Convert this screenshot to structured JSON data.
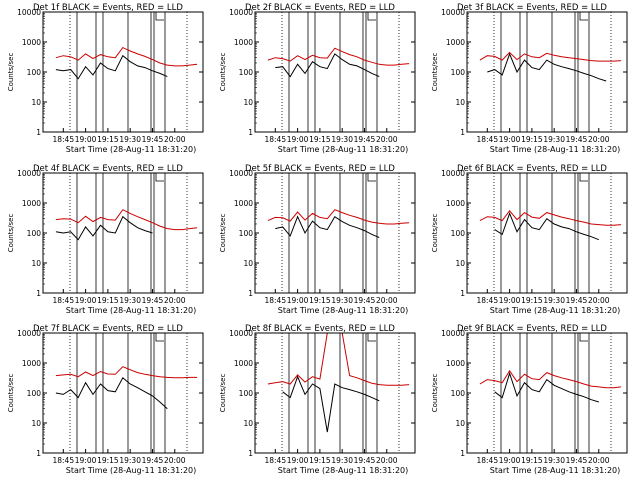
{
  "figure": {
    "colors": {
      "events": "#000000",
      "lld": "#cc0000",
      "axes": "#000000",
      "background": "#ffffff"
    },
    "y_axis": {
      "scale": "log",
      "range": [
        1,
        10000
      ],
      "ticks": [
        "1",
        "10",
        "100",
        "1000",
        "10000"
      ]
    },
    "x_axis": {
      "range": [
        "18:31:20",
        "20:19:00"
      ],
      "ticks": [
        "18:45",
        "19:00",
        "19:15",
        "19:30",
        "19:45",
        "20:00"
      ]
    },
    "ylabel": "Counts/sec",
    "xlabel": "Start Time (28-Aug-11 18:31:20)"
  },
  "chart_data": [
    {
      "type": "line",
      "title": "Det 1f  BLACK = Events, RED = LLD",
      "x": [
        "18:40",
        "18:45",
        "18:50",
        "18:55",
        "19:00",
        "19:05",
        "19:10",
        "19:15",
        "19:20",
        "19:25",
        "19:30",
        "19:35",
        "19:40",
        "19:45",
        "19:50",
        "19:55",
        "20:00",
        "20:05",
        "20:10",
        "20:15"
      ],
      "series": [
        {
          "name": "Events",
          "color": "#000000",
          "values": [
            120,
            110,
            120,
            60,
            150,
            80,
            200,
            130,
            110,
            350,
            220,
            160,
            140,
            110,
            90,
            70,
            null,
            null,
            null,
            null
          ]
        },
        {
          "name": "LLD",
          "color": "#cc0000",
          "values": [
            300,
            350,
            320,
            250,
            400,
            280,
            380,
            320,
            300,
            650,
            500,
            400,
            330,
            260,
            200,
            170,
            160,
            160,
            170,
            180
          ]
        }
      ]
    },
    {
      "type": "line",
      "title": "Det 2f  BLACK = Events, RED = LLD",
      "x": [
        "18:40",
        "18:45",
        "18:50",
        "18:55",
        "19:00",
        "19:05",
        "19:10",
        "19:15",
        "19:20",
        "19:25",
        "19:30",
        "19:35",
        "19:40",
        "19:45",
        "19:50",
        "19:55",
        "20:00",
        "20:05",
        "20:10",
        "20:15"
      ],
      "series": [
        {
          "name": "Events",
          "color": "#000000",
          "values": [
            null,
            140,
            150,
            70,
            180,
            90,
            220,
            150,
            130,
            400,
            260,
            180,
            160,
            120,
            90,
            70,
            null,
            null,
            null,
            null
          ]
        },
        {
          "name": "LLD",
          "color": "#cc0000",
          "values": [
            250,
            300,
            280,
            230,
            350,
            260,
            360,
            300,
            290,
            620,
            480,
            380,
            320,
            250,
            210,
            180,
            170,
            170,
            180,
            190
          ]
        }
      ]
    },
    {
      "type": "line",
      "title": "Det 3f  BLACK = Events, RED = LLD",
      "x": [
        "18:40",
        "18:45",
        "18:50",
        "18:55",
        "19:00",
        "19:05",
        "19:10",
        "19:15",
        "19:20",
        "19:25",
        "19:30",
        "19:35",
        "19:40",
        "19:45",
        "19:50",
        "19:55",
        "20:00",
        "20:05",
        "20:10",
        "20:15"
      ],
      "series": [
        {
          "name": "Events",
          "color": "#000000",
          "values": [
            null,
            100,
            120,
            80,
            400,
            100,
            250,
            140,
            120,
            250,
            180,
            150,
            130,
            110,
            90,
            75,
            60,
            50,
            null,
            null
          ]
        },
        {
          "name": "LLD",
          "color": "#cc0000",
          "values": [
            250,
            350,
            330,
            250,
            450,
            260,
            400,
            320,
            300,
            420,
            360,
            320,
            300,
            280,
            260,
            240,
            230,
            230,
            230,
            240
          ]
        }
      ]
    },
    {
      "type": "line",
      "title": "Det 4f  BLACK = Events, RED = LLD",
      "x": [
        "18:40",
        "18:45",
        "18:50",
        "18:55",
        "19:00",
        "19:05",
        "19:10",
        "19:15",
        "19:20",
        "19:25",
        "19:30",
        "19:35",
        "19:40",
        "19:45",
        "19:50",
        "19:55",
        "20:00",
        "20:05",
        "20:10",
        "20:15"
      ],
      "series": [
        {
          "name": "Events",
          "color": "#000000",
          "values": [
            110,
            100,
            110,
            60,
            160,
            80,
            180,
            110,
            100,
            350,
            220,
            150,
            120,
            100,
            null,
            null,
            null,
            null,
            null,
            null
          ]
        },
        {
          "name": "LLD",
          "color": "#cc0000",
          "values": [
            280,
            300,
            290,
            220,
            360,
            240,
            330,
            280,
            270,
            600,
            450,
            350,
            280,
            220,
            170,
            140,
            130,
            130,
            140,
            150
          ]
        }
      ]
    },
    {
      "type": "line",
      "title": "Det 5f  BLACK = Events, RED = LLD",
      "x": [
        "18:40",
        "18:45",
        "18:50",
        "18:55",
        "19:00",
        "19:05",
        "19:10",
        "19:15",
        "19:20",
        "19:25",
        "19:30",
        "19:35",
        "19:40",
        "19:45",
        "19:50",
        "19:55",
        "20:00",
        "20:05",
        "20:10",
        "20:15"
      ],
      "series": [
        {
          "name": "Events",
          "color": "#000000",
          "values": [
            null,
            140,
            160,
            80,
            350,
            100,
            250,
            150,
            130,
            350,
            240,
            180,
            150,
            120,
            90,
            70,
            null,
            null,
            null,
            null
          ]
        },
        {
          "name": "LLD",
          "color": "#cc0000",
          "values": [
            260,
            330,
            320,
            250,
            500,
            270,
            450,
            330,
            300,
            600,
            480,
            390,
            330,
            270,
            230,
            210,
            200,
            200,
            210,
            220
          ]
        }
      ]
    },
    {
      "type": "line",
      "title": "Det 6f  BLACK = Events, RED = LLD",
      "x": [
        "18:40",
        "18:45",
        "18:50",
        "18:55",
        "19:00",
        "19:05",
        "19:10",
        "19:15",
        "19:20",
        "19:25",
        "19:30",
        "19:35",
        "19:40",
        "19:45",
        "19:50",
        "19:55",
        "20:00",
        "20:05",
        "20:10",
        "20:15"
      ],
      "series": [
        {
          "name": "Events",
          "color": "#000000",
          "values": [
            null,
            null,
            130,
            90,
            450,
            110,
            280,
            150,
            130,
            300,
            200,
            160,
            140,
            110,
            90,
            75,
            60,
            null,
            null,
            null
          ]
        },
        {
          "name": "LLD",
          "color": "#cc0000",
          "values": [
            260,
            350,
            330,
            260,
            550,
            280,
            480,
            340,
            310,
            480,
            400,
            340,
            300,
            260,
            230,
            200,
            190,
            180,
            180,
            190
          ]
        }
      ]
    },
    {
      "type": "line",
      "title": "Det 7f  BLACK = Events, RED = LLD",
      "x": [
        "18:40",
        "18:45",
        "18:50",
        "18:55",
        "19:00",
        "19:05",
        "19:10",
        "19:15",
        "19:20",
        "19:25",
        "19:30",
        "19:35",
        "19:40",
        "19:45",
        "19:50",
        "19:55",
        "20:00",
        "20:05",
        "20:10",
        "20:15"
      ],
      "series": [
        {
          "name": "Events",
          "color": "#000000",
          "values": [
            100,
            90,
            130,
            70,
            220,
            90,
            200,
            120,
            110,
            320,
            200,
            150,
            110,
            80,
            50,
            30,
            null,
            null,
            null,
            null
          ]
        },
        {
          "name": "LLD",
          "color": "#cc0000",
          "values": [
            380,
            400,
            420,
            350,
            500,
            380,
            520,
            430,
            420,
            750,
            600,
            480,
            420,
            380,
            350,
            330,
            320,
            320,
            330,
            330
          ]
        }
      ]
    },
    {
      "type": "line",
      "title": "Det 8f  BLACK = Events, RED = LLD",
      "x": [
        "18:40",
        "18:45",
        "18:50",
        "18:55",
        "19:00",
        "19:05",
        "19:10",
        "19:15",
        "19:20",
        "19:25",
        "19:30",
        "19:35",
        "19:40",
        "19:45",
        "19:50",
        "19:55",
        "20:00",
        "20:05",
        "20:10",
        "20:15"
      ],
      "series": [
        {
          "name": "Events",
          "color": "#000000",
          "values": [
            null,
            null,
            110,
            70,
            350,
            90,
            200,
            140,
            5,
            200,
            150,
            130,
            110,
            90,
            70,
            55,
            null,
            null,
            null,
            null
          ]
        },
        {
          "name": "LLD",
          "color": "#cc0000",
          "values": [
            200,
            220,
            240,
            200,
            400,
            230,
            350,
            290,
            10000,
            10000,
            10000,
            380,
            320,
            260,
            210,
            190,
            180,
            180,
            180,
            190
          ]
        }
      ]
    },
    {
      "type": "line",
      "title": "Det 9f  BLACK = Events, RED = LLD",
      "x": [
        "18:40",
        "18:45",
        "18:50",
        "18:55",
        "19:00",
        "19:05",
        "19:10",
        "19:15",
        "19:20",
        "19:25",
        "19:30",
        "19:35",
        "19:40",
        "19:45",
        "19:50",
        "19:55",
        "20:00",
        "20:05",
        "20:10",
        "20:15"
      ],
      "series": [
        {
          "name": "Events",
          "color": "#000000",
          "values": [
            null,
            null,
            110,
            70,
            450,
            80,
            220,
            130,
            110,
            280,
            180,
            140,
            110,
            90,
            75,
            60,
            50,
            null,
            null,
            null
          ]
        },
        {
          "name": "LLD",
          "color": "#cc0000",
          "values": [
            200,
            280,
            260,
            220,
            550,
            240,
            420,
            300,
            280,
            480,
            380,
            320,
            280,
            240,
            200,
            170,
            160,
            150,
            150,
            160
          ]
        }
      ]
    }
  ]
}
